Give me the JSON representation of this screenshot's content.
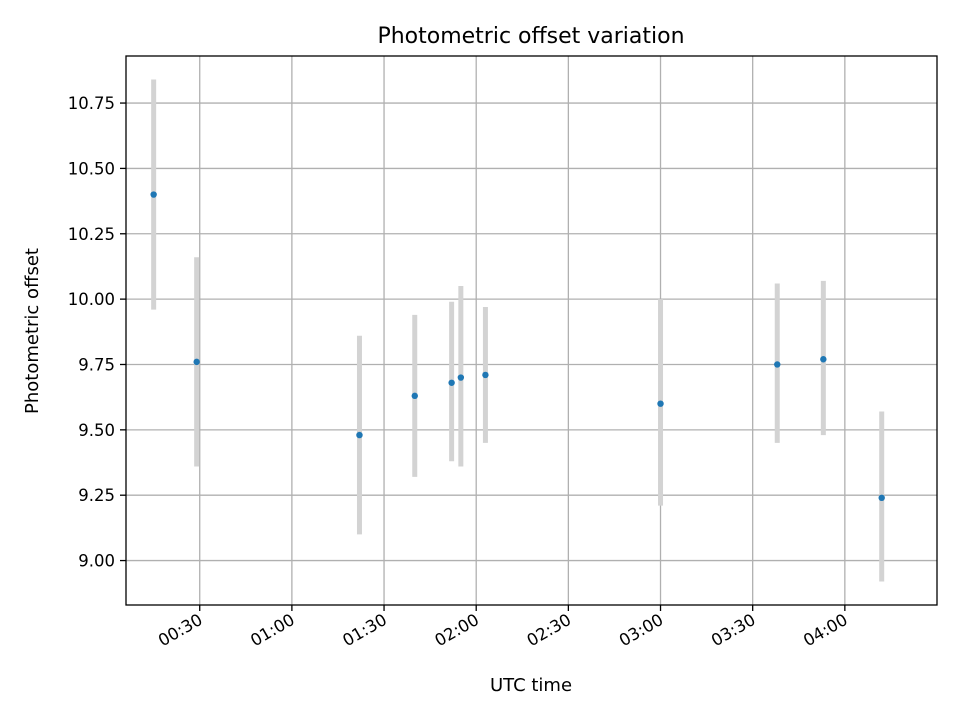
{
  "chart_data": {
    "type": "scatter",
    "title": "Photometric offset variation",
    "xlabel": "UTC time",
    "ylabel": "Photometric offset",
    "x_axis": {
      "type": "time",
      "range": [
        "00:06",
        "04:30"
      ],
      "ticks": [
        "00:30",
        "01:00",
        "01:30",
        "02:00",
        "02:30",
        "03:00",
        "03:30",
        "04:00"
      ]
    },
    "y_axis": {
      "range": [
        8.83,
        10.93
      ],
      "ticks": [
        "9.00",
        "9.25",
        "9.50",
        "9.75",
        "10.00",
        "10.25",
        "10.50",
        "10.75"
      ]
    },
    "grid": true,
    "marker_color": "#1f77b4",
    "errorbar_color": "#d3d3d3",
    "points": [
      {
        "x": "00:15",
        "y": 10.4,
        "ylow": 9.96,
        "yhigh": 10.84
      },
      {
        "x": "00:29",
        "y": 9.76,
        "ylow": 9.36,
        "yhigh": 10.16
      },
      {
        "x": "01:22",
        "y": 9.48,
        "ylow": 9.1,
        "yhigh": 9.86
      },
      {
        "x": "01:40",
        "y": 9.63,
        "ylow": 9.32,
        "yhigh": 9.94
      },
      {
        "x": "01:52",
        "y": 9.68,
        "ylow": 9.38,
        "yhigh": 9.99
      },
      {
        "x": "01:55",
        "y": 9.7,
        "ylow": 9.36,
        "yhigh": 10.05
      },
      {
        "x": "02:03",
        "y": 9.71,
        "ylow": 9.45,
        "yhigh": 9.97
      },
      {
        "x": "03:00",
        "y": 9.6,
        "ylow": 9.21,
        "yhigh": 10.0
      },
      {
        "x": "03:38",
        "y": 9.75,
        "ylow": 9.45,
        "yhigh": 10.06
      },
      {
        "x": "03:53",
        "y": 9.77,
        "ylow": 9.48,
        "yhigh": 10.07
      },
      {
        "x": "04:12",
        "y": 9.24,
        "ylow": 8.92,
        "yhigh": 9.57
      }
    ]
  }
}
